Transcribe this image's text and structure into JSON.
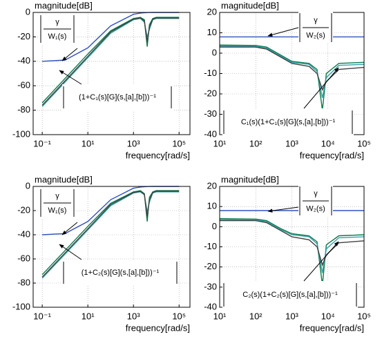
{
  "chart_data": [
    {
      "type": "line",
      "title": "magnitude[dB]",
      "xlabel": "frequency[rad/s]",
      "xscale": "log",
      "grid": true,
      "x": [
        0.1,
        1,
        10,
        100,
        1000,
        2000,
        3000,
        4000,
        5000,
        7000,
        10000,
        100000
      ],
      "xlim": [
        0.04,
        300000
      ],
      "xticks": [
        {
          "value": 0.1,
          "label": "10⁻¹"
        },
        {
          "value": 10,
          "label": "10¹"
        },
        {
          "value": 1000,
          "label": "10³"
        },
        {
          "value": 100000,
          "label": "10⁵"
        }
      ],
      "ylim": [
        -100,
        0
      ],
      "yticks": [
        -100,
        -80,
        -60,
        -40,
        -20,
        0
      ],
      "series": [
        {
          "color": "#3050c0",
          "values": [
            -40,
            -39,
            -29,
            -11,
            -1.5,
            -0.5,
            -0.2,
            -0.1,
            -0.05,
            0,
            0,
            0
          ]
        },
        {
          "color": "#0a7a4a",
          "values": [
            -74,
            -54,
            -34,
            -15,
            -5,
            -4,
            -6,
            -28,
            -10,
            -5,
            -4,
            -4
          ]
        },
        {
          "color": "#30a0a8",
          "values": [
            -77,
            -57,
            -37,
            -17,
            -6,
            -5,
            -8,
            -20,
            -14,
            -6,
            -5,
            -5
          ]
        },
        {
          "color": "#404040",
          "values": [
            -76,
            -56,
            -36,
            -16,
            -5.5,
            -4.5,
            -7,
            -24,
            -12,
            -5.5,
            -4.5,
            -4.5
          ]
        }
      ],
      "annotations": [
        {
          "numerator": "γ",
          "denominator": "W₁(s)"
        },
        {
          "text": "(1+C₁(s)[G](s,[a],[b]))⁻¹"
        }
      ]
    },
    {
      "type": "line",
      "title": "magnitude[dB]",
      "xlabel": "frequency[rad/s]",
      "xscale": "log",
      "grid": true,
      "x": [
        10,
        100,
        200,
        500,
        1000,
        3000,
        5000,
        7000,
        9000,
        20000,
        100000
      ],
      "xlim": [
        10,
        100000
      ],
      "xticks": [
        {
          "value": 10,
          "label": "10¹"
        },
        {
          "value": 100,
          "label": "10²"
        },
        {
          "value": 1000,
          "label": "10³"
        },
        {
          "value": 10000,
          "label": "10⁴"
        },
        {
          "value": 100000,
          "label": "10⁵"
        }
      ],
      "ylim": [
        -40,
        20
      ],
      "yticks": [
        -40,
        -30,
        -20,
        -10,
        0,
        10,
        20
      ],
      "series": [
        {
          "color": "#3050c0",
          "values": [
            8,
            8,
            8,
            8,
            8,
            8,
            8,
            8,
            8,
            8,
            8
          ]
        },
        {
          "color": "#0a7a4a",
          "values": [
            4,
            3.8,
            3,
            -1,
            -4,
            -5,
            -8,
            -28,
            -10,
            -5,
            -4.5
          ]
        },
        {
          "color": "#30a0a8",
          "values": [
            3.5,
            3.4,
            2.5,
            -1.5,
            -4.5,
            -5.5,
            -9,
            -22,
            -12,
            -6,
            -5.5
          ]
        },
        {
          "color": "#404040",
          "values": [
            3,
            3,
            2,
            -2,
            -5,
            -6.5,
            -10,
            -18,
            -14,
            -8,
            -7
          ]
        }
      ],
      "annotations": [
        {
          "numerator": "γ",
          "denominator": "W₂(s)"
        },
        {
          "text": "C₁(s)(1+C₁(s)[G](s,[a],[b]))⁻¹"
        }
      ]
    },
    {
      "type": "line",
      "title": "magnitude[dB]",
      "xlabel": "frequency[rad/s]",
      "xscale": "log",
      "grid": true,
      "x": [
        0.1,
        1,
        10,
        100,
        1000,
        2000,
        3000,
        4000,
        5000,
        7000,
        10000,
        100000
      ],
      "xlim": [
        0.04,
        300000
      ],
      "xticks": [
        {
          "value": 0.1,
          "label": "10⁻¹"
        },
        {
          "value": 10,
          "label": "10¹"
        },
        {
          "value": 1000,
          "label": "10³"
        },
        {
          "value": 100000,
          "label": "10⁵"
        }
      ],
      "ylim": [
        -100,
        0
      ],
      "yticks": [
        -100,
        -80,
        -60,
        -40,
        -20,
        0
      ],
      "series": [
        {
          "color": "#3050c0",
          "values": [
            -40,
            -39,
            -29,
            -11,
            -1.5,
            -0.5,
            -0.2,
            -0.1,
            -0.05,
            0,
            0,
            0
          ]
        },
        {
          "color": "#0a7a4a",
          "values": [
            -73,
            -53,
            -33,
            -14,
            -4.5,
            -3.5,
            -6,
            -29,
            -9,
            -4.5,
            -3.5,
            -3.5
          ]
        },
        {
          "color": "#30a0a8",
          "values": [
            -76,
            -56,
            -36,
            -16,
            -5.5,
            -4.5,
            -7,
            -21,
            -13,
            -5.5,
            -4.5,
            -4.5
          ]
        },
        {
          "color": "#404040",
          "values": [
            -75,
            -55,
            -35,
            -15,
            -5,
            -4,
            -6.5,
            -25,
            -11,
            -5,
            -4,
            -4
          ]
        }
      ],
      "annotations": [
        {
          "numerator": "γ",
          "denominator": "W₁(s)"
        },
        {
          "text": "(1+C₂(s)[G](s,[a],[b]))⁻¹"
        }
      ]
    },
    {
      "type": "line",
      "title": "magnitude[dB]",
      "xlabel": "frequency[rad/s]",
      "xscale": "log",
      "grid": true,
      "x": [
        10,
        100,
        200,
        500,
        1000,
        3000,
        5000,
        7000,
        9000,
        20000,
        100000
      ],
      "xlim": [
        10,
        100000
      ],
      "xticks": [
        {
          "value": 10,
          "label": "10¹"
        },
        {
          "value": 100,
          "label": "10²"
        },
        {
          "value": 1000,
          "label": "10³"
        },
        {
          "value": 10000,
          "label": "10⁴"
        },
        {
          "value": 100000,
          "label": "10⁵"
        }
      ],
      "ylim": [
        -40,
        20
      ],
      "yticks": [
        -40,
        -30,
        -20,
        -10,
        0,
        10,
        20
      ],
      "series": [
        {
          "color": "#3050c0",
          "values": [
            8,
            8,
            8,
            8,
            8,
            8,
            8,
            8,
            8,
            8,
            8
          ]
        },
        {
          "color": "#0a7a4a",
          "values": [
            4,
            3.8,
            3,
            -1,
            -3.5,
            -4.5,
            -7.5,
            -29,
            -9,
            -4.5,
            -4
          ]
        },
        {
          "color": "#30a0a8",
          "values": [
            3.5,
            3.4,
            2.5,
            -1.5,
            -4,
            -5,
            -8.5,
            -23,
            -11,
            -5.5,
            -5
          ]
        },
        {
          "color": "#404040",
          "values": [
            3,
            3,
            2,
            -2,
            -5,
            -6.5,
            -10,
            -19,
            -14,
            -8,
            -7
          ]
        }
      ],
      "annotations": [
        {
          "numerator": "γ",
          "denominator": "W₂(s)"
        },
        {
          "text": "C₂(s)(1+C₂(s)[G](s,[a],[b]))⁻¹"
        }
      ]
    }
  ]
}
